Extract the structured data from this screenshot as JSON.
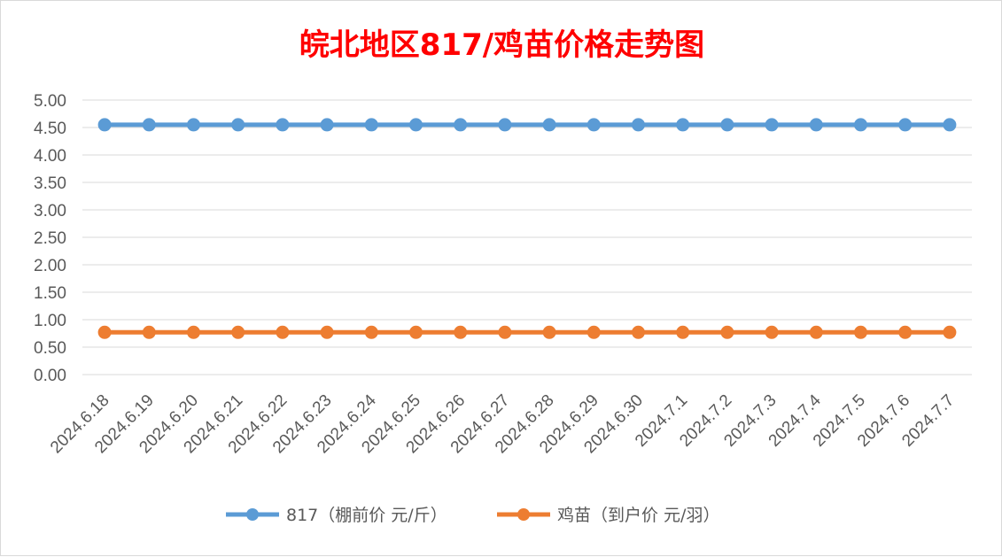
{
  "chart_data": {
    "type": "line",
    "title": "皖北地区817/鸡苗价格走势图",
    "categories": [
      "2024.6.18",
      "2024.6.19",
      "2024.6.20",
      "2024.6.21",
      "2024.6.22",
      "2024.6.23",
      "2024.6.24",
      "2024.6.25",
      "2024.6.26",
      "2024.6.27",
      "2024.6.28",
      "2024.6.29",
      "2024.6.30",
      "2024.7.1",
      "2024.7.2",
      "2024.7.3",
      "2024.7.4",
      "2024.7.5",
      "2024.7.6",
      "2024.7.7"
    ],
    "y_ticks": [
      "0.00",
      "0.50",
      "1.00",
      "1.50",
      "2.00",
      "2.50",
      "3.00",
      "3.50",
      "4.00",
      "4.50",
      "5.00"
    ],
    "ylim": [
      0,
      5
    ],
    "grid": true,
    "legend_position": "bottom",
    "series": [
      {
        "name": "817（棚前价 元/斤）",
        "color": "#5b9bd5",
        "values": [
          4.55,
          4.55,
          4.55,
          4.55,
          4.55,
          4.55,
          4.55,
          4.55,
          4.55,
          4.55,
          4.55,
          4.55,
          4.55,
          4.55,
          4.55,
          4.55,
          4.55,
          4.55,
          4.55,
          4.55
        ]
      },
      {
        "name": "鸡苗（到户价 元/羽）",
        "color": "#ed7d31",
        "values": [
          0.77,
          0.77,
          0.77,
          0.77,
          0.77,
          0.77,
          0.77,
          0.77,
          0.77,
          0.77,
          0.77,
          0.77,
          0.77,
          0.77,
          0.77,
          0.77,
          0.77,
          0.77,
          0.77,
          0.77
        ]
      }
    ]
  }
}
